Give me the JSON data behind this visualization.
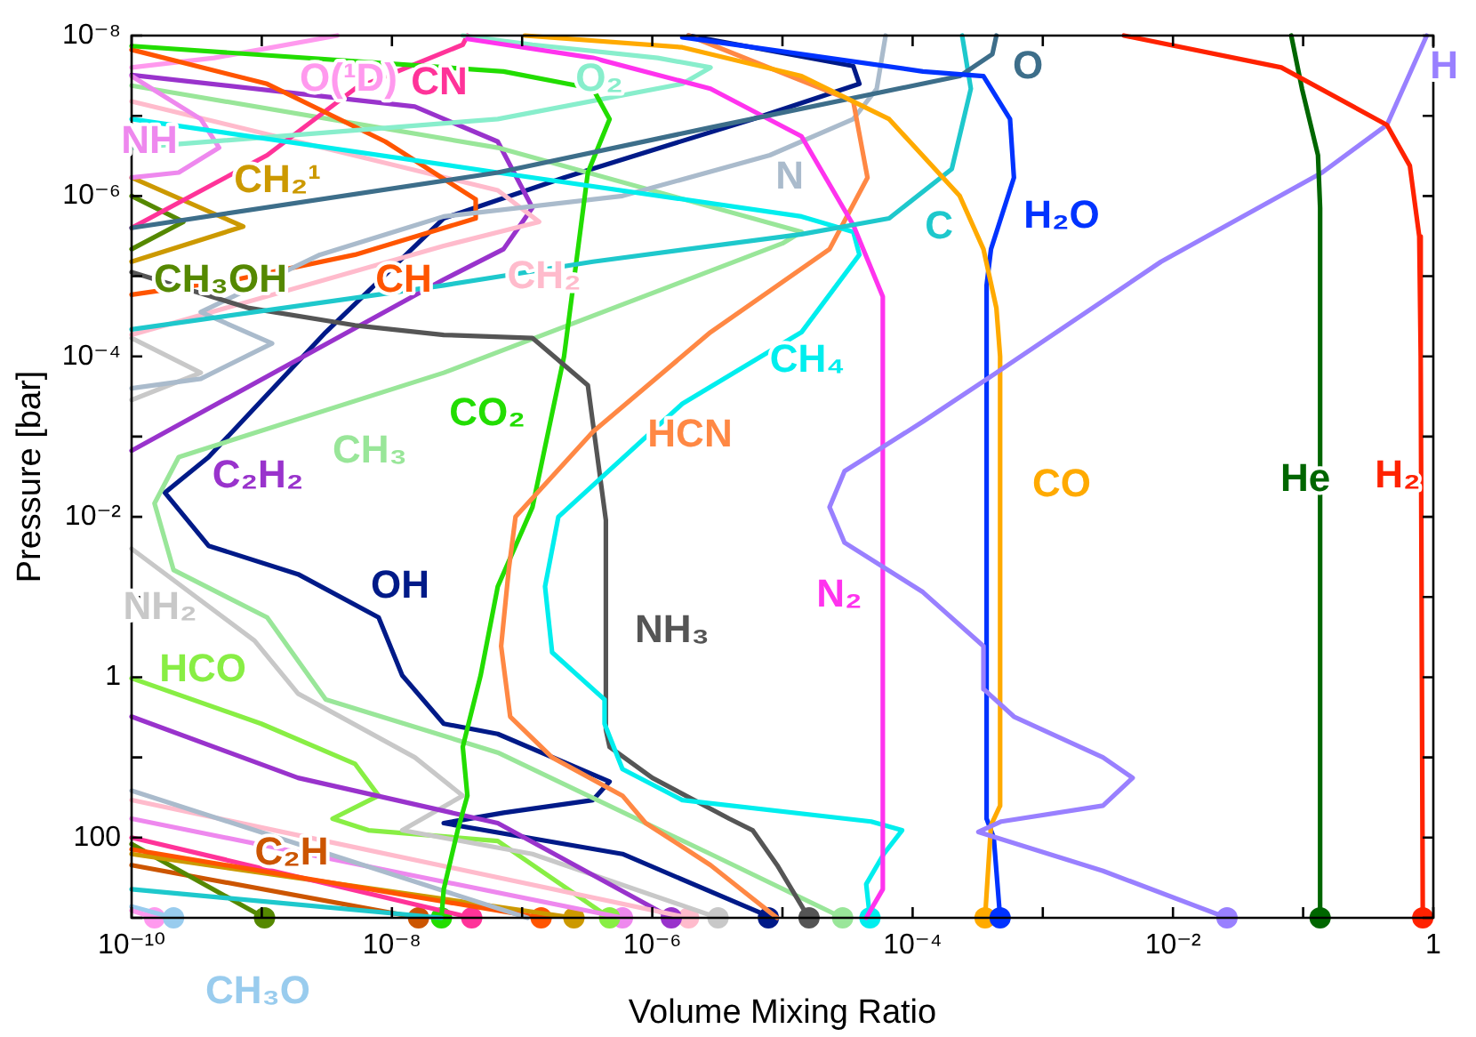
{
  "chart_data": {
    "type": "line",
    "xlabel": "Volume Mixing Ratio",
    "ylabel": "Pressure [bar]",
    "log": "xy",
    "xlim": [
      1e-10,
      1
    ],
    "ylim": [
      1000,
      1e-08
    ],
    "xticks": [
      {
        "value": 1e-10,
        "label": "10⁻¹⁰"
      },
      {
        "value": 1e-09,
        "label": null
      },
      {
        "value": 1e-08,
        "label": "10⁻⁸"
      },
      {
        "value": 1e-07,
        "label": null
      },
      {
        "value": 1e-06,
        "label": "10⁻⁶"
      },
      {
        "value": 1e-05,
        "label": null
      },
      {
        "value": 0.0001,
        "label": "10⁻⁴"
      },
      {
        "value": 0.001,
        "label": null
      },
      {
        "value": 0.01,
        "label": "10⁻²"
      },
      {
        "value": 0.1,
        "label": null
      },
      1
    ],
    "yticks": [
      {
        "value": 1e-08,
        "label": "10⁻⁸"
      },
      {
        "value": 1e-07,
        "label": null
      },
      {
        "value": 1e-06,
        "label": "10⁻⁶"
      },
      {
        "value": 1e-05,
        "label": null
      },
      {
        "value": 0.0001,
        "label": "10⁻⁴"
      },
      {
        "value": 0.001,
        "label": null
      },
      {
        "value": 0.01,
        "label": "10⁻²"
      },
      {
        "value": 0.1,
        "label": null
      },
      1,
      {
        "value": 10,
        "label": null
      },
      100,
      {
        "value": 1000,
        "label": null
      }
    ],
    "series": [
      {
        "name": "H₂",
        "color": "#ff2200",
        "x": [
          0.0042,
          0.068,
          0.44,
          0.66,
          0.78,
          0.8,
          0.83
        ],
        "values": [
          1e-08,
          2.5e-08,
          1.3e-07,
          4.2e-07,
          3.2e-06,
          0.0001,
          1000
        ]
      },
      {
        "name": "He",
        "color": "#006600",
        "x": [
          0.081,
          0.098,
          0.13,
          0.135,
          0.135
        ],
        "values": [
          1e-08,
          4.6e-08,
          3.1e-07,
          1.4e-06,
          1000
        ]
      },
      {
        "name": "H",
        "color": "#9980ff",
        "x": [
          0.89,
          0.44,
          0.14,
          0.0081,
          0.00044,
          0.00012,
          3e-05,
          2.3e-05,
          3e-05,
          0.00012,
          0.00035,
          0.00035,
          0.0006,
          0.0029,
          0.0049,
          0.0029,
          0.00048,
          0.00032,
          0.0029,
          0.026
        ],
        "values": [
          1e-08,
          1.3e-07,
          5.1e-07,
          6.6e-06,
          0.00016,
          0.00065,
          0.0027,
          0.0076,
          0.021,
          0.087,
          0.41,
          1.4,
          3.1,
          10,
          18,
          40,
          63,
          85,
          260,
          1000
        ]
      },
      {
        "name": "CO",
        "color": "#ffaa00",
        "x": [
          1.05e-07,
          1.7e-06,
          1.4e-05,
          6.6e-05,
          0.00023,
          0.00035,
          0.00044,
          0.00047,
          0.00047,
          0.0004,
          0.00036
        ],
        "values": [
          1e-08,
          1.4e-08,
          3.2e-08,
          1.1e-07,
          1e-06,
          4.6e-06,
          2.5e-05,
          0.0001,
          40,
          70,
          1000
        ]
      },
      {
        "name": "H₂O",
        "color": "#0033ff",
        "x": [
          1.7e-06,
          0.00012,
          0.00035,
          0.00056,
          0.0006,
          0.0004,
          0.00037,
          0.00037,
          0.00042,
          0.00047
        ],
        "values": [
          1.05e-08,
          2.8e-08,
          3.2e-08,
          1.1e-07,
          5.9e-07,
          4.6e-06,
          1.3e-05,
          58,
          100,
          1000
        ]
      },
      {
        "name": "O",
        "color": "#3d6e8a",
        "x": [
          0.00044,
          0.00041,
          0.00023,
          2.8e-06,
          6.5e-08,
          1e-10
        ],
        "values": [
          1e-08,
          1.7e-08,
          3.2e-08,
          1.4e-07,
          5.1e-07,
          2.5e-06
        ]
      },
      {
        "name": "C",
        "color": "#1ec8cc",
        "x": [
          0.00024,
          0.00028,
          0.0002,
          6.6e-05,
          1.4e-05,
          3.5e-07,
          2.5e-08,
          1e-10,
          null,
          1e-10,
          2.4e-08
        ],
        "values": [
          1e-08,
          4.6e-08,
          4.6e-07,
          1.9e-06,
          3e-06,
          6.6e-06,
          1.3e-05,
          4.6e-05,
          null,
          440,
          1000
        ]
      },
      {
        "name": "N₂",
        "color": "#ff33ee",
        "x": [
          3.8e-08,
          3.5e-07,
          2.8e-06,
          1.4e-05,
          3.5e-05,
          5.9e-05,
          5.9e-05,
          4.4e-05
        ],
        "values": [
          1.1e-08,
          1.9e-08,
          4.6e-08,
          1.8e-07,
          2.3e-06,
          1.8e-05,
          440,
          1000
        ]
      },
      {
        "name": "CH₄",
        "color": "#00eeee",
        "x": [
          1e-10,
          6.5e-08,
          1.4e-05,
          3.5e-05,
          3.9e-05,
          1.4e-05,
          1.7e-06,
          1.9e-07,
          1.5e-07,
          1.7e-07,
          4.3e-07,
          4.3e-07,
          5.9e-07,
          1.7e-06,
          4.8e-05,
          8.3e-05,
          6e-05,
          4.4e-05,
          4.7e-05
        ],
        "values": [
          1.1e-07,
          5.1e-07,
          1.8e-06,
          2.8e-06,
          5.4e-06,
          5e-05,
          0.00039,
          0.01,
          0.074,
          0.49,
          1.9,
          3.8,
          14,
          34,
          63,
          81,
          160,
          380,
          1000
        ]
      },
      {
        "name": "HCN",
        "color": "#ff8844",
        "x": [
          1.9e-06,
          3.5e-05,
          4.5e-05,
          2.3e-05,
          2.8e-06,
          3.5e-07,
          8.9e-08,
          7.9e-08,
          6.9e-08,
          8.1e-08,
          1.7e-07,
          5.9e-07,
          8.9e-07,
          2.8e-06,
          8e-06,
          9.1e-06
        ],
        "values": [
          1e-08,
          6.6e-08,
          5.9e-07,
          4.6e-06,
          5e-05,
          0.00087,
          0.01,
          0.045,
          0.41,
          3.1,
          10,
          30,
          66,
          220,
          850,
          1000
        ]
      },
      {
        "name": "NH₃",
        "color": "#555555",
        "x": [
          1e-10,
          8e-10,
          5.2e-09,
          2.5e-08,
          1.2e-07,
          3.2e-07,
          4.4e-07,
          4.4e-07,
          4.7e-07,
          1e-06,
          3.9e-06,
          5.9e-06,
          9.1e-06,
          1.5e-05,
          1.6e-05
        ],
        "values": [
          8.9e-06,
          2.5e-05,
          4.1e-05,
          5.4e-05,
          5.9e-05,
          0.00023,
          0.011,
          4.5,
          7.4,
          18,
          58,
          81,
          220,
          850,
          1000
        ]
      },
      {
        "name": "CO₂",
        "color": "#22dd00",
        "x": [
          1e-10,
          7.2e-08,
          3.5e-07,
          4.7e-07,
          3.2e-07,
          2.1e-07,
          1.2e-07,
          6.5e-08,
          4.8e-08,
          3.5e-08,
          3.8e-08,
          3.2e-08,
          2.5e-08,
          2.4e-08
        ],
        "values": [
          1.35e-08,
          2.8e-08,
          4.6e-08,
          1.1e-07,
          5.1e-07,
          0.0001,
          0.0076,
          0.074,
          0.95,
          7.4,
          30,
          81,
          440,
          1000
        ]
      },
      {
        "name": "N",
        "color": "#aabbcc",
        "x": [
          6.2e-05,
          5.3e-05,
          3.5e-05,
          8e-06,
          5.9e-07,
          2.5e-08,
          2.8e-09,
          3.4e-10,
          1.2e-09,
          3.4e-10,
          1e-10,
          null,
          1e-10,
          1.1e-07
        ],
        "values": [
          1e-08,
          4.6e-08,
          1.1e-07,
          3.1e-07,
          1e-06,
          1.8e-06,
          5.4e-06,
          2.8e-05,
          6.9e-05,
          0.00019,
          0.00025,
          null,
          26,
          1000
        ]
      },
      {
        "name": "O₂",
        "color": "#88eecc",
        "x": [
          1e-10,
          6.5e-08,
          1.7e-06,
          2.8e-06,
          1.1e-06,
          1.2e-07,
          3.5e-08
        ],
        "values": [
          2.5e-07,
          1.1e-07,
          4e-08,
          2.5e-08,
          1.9e-08,
          1.3e-08,
          1e-08
        ]
      },
      {
        "name": "CH",
        "color": "#ff5500",
        "x": [
          1e-10,
          1.1e-09,
          8.9e-09,
          4.4e-08,
          4.4e-08,
          5.2e-09,
          6.4e-10,
          1e-10,
          null,
          1e-10,
          1.4e-07
        ],
        "values": [
          1.5e-08,
          4e-08,
          2.1e-07,
          1.1e-06,
          1.9e-06,
          5.4e-06,
          1.1e-05,
          1.7e-05,
          null,
          140,
          1000
        ]
      },
      {
        "name": "CN",
        "color": "#ff3399",
        "x": [
          1e-10,
          1.1e-09,
          5.2e-09,
          3.5e-08,
          3.8e-08,
          null,
          1e-10,
          4.1e-08
        ],
        "values": [
          2.5e-06,
          3.1e-07,
          4.6e-08,
          1.3e-08,
          1e-08,
          null,
          100,
          1000
        ]
      },
      {
        "name": "O(¹D)",
        "color": "#ff99ee",
        "x": [
          3.8e-09,
          4.3e-10,
          1e-10,
          null,
          1e-10,
          1.5e-10
        ],
        "values": [
          1e-08,
          1.9e-08,
          2.5e-08,
          null,
          810,
          1000
        ]
      },
      {
        "name": "NH",
        "color": "#ee88ee",
        "x": [
          1e-10,
          3.4e-10,
          4.7e-10,
          2.3e-10,
          1e-10,
          null,
          1e-10,
          5.9e-07
        ],
        "values": [
          3.2e-08,
          1.1e-07,
          2.5e-07,
          5.1e-07,
          5.9e-07,
          null,
          58,
          1000
        ]
      },
      {
        "name": "CH₂¹",
        "color": "#cc9900",
        "x": [
          1e-10,
          7.2e-10,
          1e-10,
          null,
          1e-10,
          2.5e-07
        ],
        "values": [
          5.9e-07,
          2.4e-06,
          6.6e-06,
          null,
          160,
          1000
        ]
      },
      {
        "name": "CH₃OH",
        "color": "#558800",
        "x": [
          1e-10,
          2.5e-10,
          1e-10,
          null,
          1e-10,
          1.05e-09
        ],
        "values": [
          1e-06,
          2.1e-06,
          4.6e-06,
          null,
          120,
          1000
        ]
      },
      {
        "name": "CH₂",
        "color": "#ffbbcc",
        "x": [
          1e-10,
          6.5e-08,
          1.35e-07,
          2.5e-08,
          1e-10,
          null,
          1e-10,
          1.9e-06
        ],
        "values": [
          6.6e-08,
          8.5e-07,
          2.1e-06,
          4.2e-06,
          5.4e-05,
          null,
          34,
          1000
        ]
      },
      {
        "name": "CH₃",
        "color": "#99e699",
        "x": [
          1e-10,
          6.5e-08,
          1.4e-05,
          1e-05,
          2.5e-08,
          2.3e-10,
          1.5e-10,
          2.1e-10,
          1.1e-09,
          3.1e-09,
          6.5e-08,
          2.8e-06,
          2.9e-05
        ],
        "values": [
          4.2e-08,
          2.5e-07,
          2.8e-06,
          3.9e-06,
          0.00016,
          0.0018,
          0.0068,
          0.046,
          0.18,
          1.9,
          8.7,
          160,
          1000
        ]
      },
      {
        "name": "C₂H₂",
        "color": "#9933cc",
        "x": [
          1e-10,
          1.5e-08,
          6.5e-08,
          1.2e-07,
          7.2e-08,
          2.5e-08,
          1e-10,
          null,
          1e-10,
          1.9e-09,
          6.5e-08,
          1.4e-06
        ],
        "values": [
          3.1e-08,
          7.7e-08,
          2.1e-07,
          1.4e-06,
          4.6e-06,
          1.1e-05,
          0.0015,
          null,
          3.1,
          18,
          66,
          1000
        ]
      },
      {
        "name": "OH",
        "color": "#001a88",
        "x": [
          1.9e-06,
          3.5e-05,
          3.9e-05,
          5.9e-06,
          2.1e-07,
          2.5e-08,
          3.1e-09,
          3.9e-10,
          1.8e-10,
          3.9e-10,
          1.9e-09,
          7.9e-09,
          1.2e-08,
          2.5e-08,
          6.5e-08,
          4.7e-07,
          3.5e-07,
          7.2e-08,
          2.5e-08,
          5.9e-07,
          6.6e-06,
          7.8e-06
        ],
        "values": [
          1e-08,
          2.4e-08,
          4e-08,
          1.1e-07,
          5.9e-07,
          1.9e-06,
          5e-05,
          0.0018,
          0.005,
          0.023,
          0.052,
          0.18,
          0.95,
          3.8,
          5.1,
          20,
          34,
          49,
          66,
          160,
          850,
          1000
        ]
      },
      {
        "name": "NH₂",
        "color": "#c8c8c8",
        "x": [
          1e-10,
          3.4e-10,
          1e-10,
          null,
          1e-10,
          8.8e-10,
          1.9e-09,
          1.5e-08,
          3.5e-08,
          1.2e-08,
          1.2e-07,
          3.2e-06
        ],
        "values": [
          5.9e-05,
          0.00016,
          0.00035,
          null,
          0.025,
          0.35,
          1.6,
          10,
          30,
          81,
          160,
          1000
        ]
      },
      {
        "name": "HCO",
        "color": "#88ee44",
        "x": [
          1e-10,
          9.9e-10,
          5.2e-09,
          7.9e-09,
          3.5e-09,
          6.6e-09,
          6.5e-08,
          4.7e-07
        ],
        "values": [
          1.03,
          3.8,
          12,
          30,
          58,
          81,
          110,
          1000
        ]
      },
      {
        "name": "C₂H",
        "color": "#cc5500",
        "x": [
          1e-10,
          1.6e-08
        ],
        "values": [
          220,
          1000
        ]
      },
      {
        "name": "CH₃O",
        "color": "#99ccee",
        "x": [
          1e-10,
          2.1e-10
        ],
        "values": [
          720,
          1000
        ]
      },
      {
        "type": "scatter",
        "marker": "circle",
        "x": [
          0.83,
          0.135,
          0.026,
          0.00036,
          0.00047,
          null,
          null,
          4.7e-05,
          null,
          1.6e-05,
          2.4e-08,
          null,
          1.4e-07,
          4.1e-08,
          1.5e-10,
          5.9e-07,
          2.5e-07,
          1.05e-09,
          1.9e-06,
          2.9e-05,
          1.4e-06,
          7.8e-06,
          3.2e-06,
          4.7e-07,
          1.6e-08,
          2.1e-10
        ],
        "values": [
          1000,
          1000,
          1000,
          1000,
          1000,
          null,
          null,
          1000,
          null,
          1000,
          1000,
          null,
          1000,
          1000,
          1000,
          1000,
          1000,
          1000,
          1000,
          1000,
          1000,
          1000,
          1000,
          1000,
          1000,
          1000
        ],
        "colors": [
          "#ff2200",
          "#006600",
          "#9980ff",
          "#ffaa00",
          "#0033ff",
          "#1ec8cc",
          "#ff33ee",
          "#00eeee",
          "#ff8844",
          "#555555",
          "#22dd00",
          "#aabbcc",
          "#ff5500",
          "#ff3399",
          "#ff99ee",
          "#ee88ee",
          "#cc9900",
          "#558800",
          "#ffbbcc",
          "#99e699",
          "#9933cc",
          "#001a88",
          "#c8c8c8",
          "#88ee44",
          "#cc5500",
          "#99ccee"
        ]
      }
    ]
  }
}
